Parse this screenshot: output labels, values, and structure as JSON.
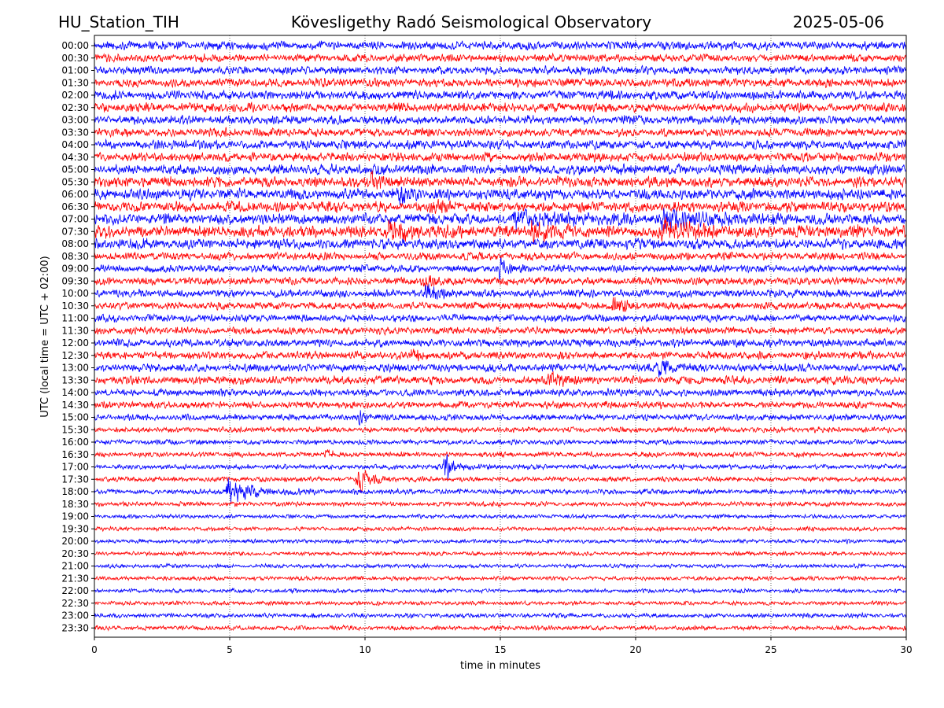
{
  "header": {
    "station": "HU_Station_TIH",
    "observatory": "Kövesligethy Radó Seismological Observatory",
    "date": "2025-05-06"
  },
  "chart_data": {
    "type": "line",
    "title": "Kövesligethy Radó Seismological Observatory",
    "xlabel": "time in minutes",
    "ylabel": "UTC (local time = UTC + 02:00)",
    "xlim": [
      0,
      30
    ],
    "x_ticks": [
      "0",
      "5",
      "10",
      "15",
      "20",
      "25",
      "30"
    ],
    "x_tick_values": [
      0,
      5,
      10,
      15,
      20,
      25,
      30
    ],
    "grid": "vertical dotted lines at each major x tick",
    "trace_colors": [
      "#0000ff",
      "#ff0000"
    ],
    "row_labels": [
      "00:00",
      "00:30",
      "01:00",
      "01:30",
      "02:00",
      "02:30",
      "03:00",
      "03:30",
      "04:00",
      "04:30",
      "05:00",
      "05:30",
      "06:00",
      "06:30",
      "07:00",
      "07:30",
      "08:00",
      "08:30",
      "09:00",
      "09:30",
      "10:00",
      "10:30",
      "11:00",
      "11:30",
      "12:00",
      "12:30",
      "13:00",
      "13:30",
      "14:00",
      "14:30",
      "15:00",
      "15:30",
      "16:00",
      "16:30",
      "17:00",
      "17:30",
      "18:00",
      "18:30",
      "19:00",
      "19:30",
      "20:00",
      "20:30",
      "21:00",
      "21:30",
      "22:00",
      "22:30",
      "23:00",
      "23:30"
    ],
    "noise_amplitude": [
      0.95,
      0.85,
      0.9,
      0.95,
      1.0,
      1.0,
      0.95,
      0.9,
      1.0,
      1.0,
      1.1,
      1.15,
      1.2,
      1.15,
      1.2,
      1.3,
      1.1,
      0.85,
      0.8,
      0.85,
      0.85,
      0.8,
      0.8,
      0.8,
      0.85,
      0.85,
      0.85,
      0.9,
      0.8,
      0.75,
      0.7,
      0.6,
      0.55,
      0.55,
      0.55,
      0.55,
      0.55,
      0.5,
      0.45,
      0.45,
      0.45,
      0.45,
      0.45,
      0.45,
      0.45,
      0.45,
      0.5,
      0.5
    ],
    "events": [
      {
        "row": "05:30",
        "minute": 10.3,
        "amplitude": 1.6,
        "duration": 0.25
      },
      {
        "row": "06:00",
        "minute": 11.3,
        "amplitude": 2.6,
        "duration": 0.3
      },
      {
        "row": "06:30",
        "minute": 12.6,
        "amplitude": 1.4,
        "duration": 0.3
      },
      {
        "row": "07:00",
        "minute": 15.5,
        "amplitude": 1.8,
        "duration": 1.5
      },
      {
        "row": "07:00",
        "minute": 21.0,
        "amplitude": 1.8,
        "duration": 1.5
      },
      {
        "row": "07:30",
        "minute": 10.8,
        "amplitude": 1.5,
        "duration": 1.2
      },
      {
        "row": "07:30",
        "minute": 16.2,
        "amplitude": 1.9,
        "duration": 0.8
      },
      {
        "row": "07:30",
        "minute": 21.0,
        "amplitude": 2.3,
        "duration": 1.2
      },
      {
        "row": "09:00",
        "minute": 15.0,
        "amplitude": 1.9,
        "duration": 0.3
      },
      {
        "row": "09:30",
        "minute": 12.2,
        "amplitude": 2.3,
        "duration": 0.3
      },
      {
        "row": "10:00",
        "minute": 12.3,
        "amplitude": 1.7,
        "duration": 0.5
      },
      {
        "row": "10:30",
        "minute": 19.2,
        "amplitude": 1.6,
        "duration": 0.5
      },
      {
        "row": "12:30",
        "minute": 11.8,
        "amplitude": 1.7,
        "duration": 0.2
      },
      {
        "row": "13:00",
        "minute": 20.9,
        "amplitude": 2.6,
        "duration": 0.3
      },
      {
        "row": "13:30",
        "minute": 16.8,
        "amplitude": 1.6,
        "duration": 0.6
      },
      {
        "row": "15:00",
        "minute": 9.8,
        "amplitude": 1.6,
        "duration": 0.2
      },
      {
        "row": "16:30",
        "minute": 8.6,
        "amplitude": 1.4,
        "duration": 0.2
      },
      {
        "row": "17:00",
        "minute": 13.0,
        "amplitude": 3.3,
        "duration": 0.3
      },
      {
        "row": "17:30",
        "minute": 9.75,
        "amplitude": 3.3,
        "duration": 0.4
      },
      {
        "row": "18:00",
        "minute": 4.95,
        "amplitude": 3.0,
        "duration": 0.9
      }
    ]
  }
}
